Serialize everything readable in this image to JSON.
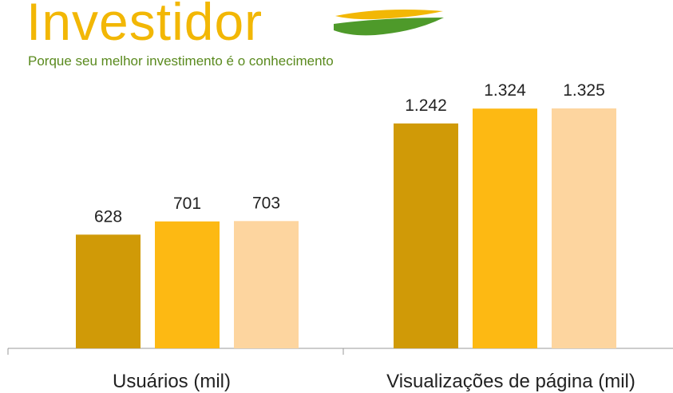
{
  "logo": {
    "name": "Investidor",
    "tagline": "Porque seu melhor investimento é o conhecimento"
  },
  "chart_data": {
    "type": "bar",
    "categories": [
      "Usuários (mil)",
      "Visualizações de página (mil)"
    ],
    "series": [
      {
        "color": "#D09A07",
        "values": [
          628,
          1242
        ],
        "value_labels": [
          "628",
          "1.242"
        ]
      },
      {
        "color": "#FDB913",
        "values": [
          701,
          1324
        ],
        "value_labels": [
          "701",
          "1.324"
        ]
      },
      {
        "color": "#FDD59F",
        "values": [
          703,
          1325
        ],
        "value_labels": [
          "703",
          "1.325"
        ]
      }
    ]
  }
}
